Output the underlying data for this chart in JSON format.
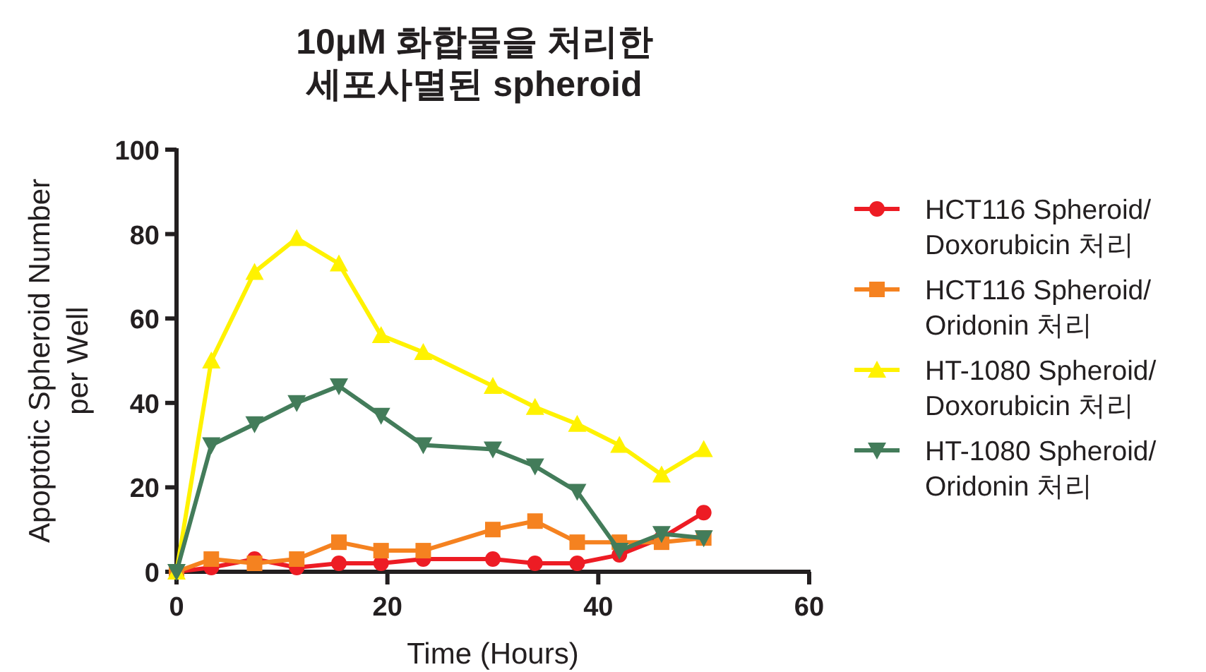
{
  "chart_data": {
    "type": "line",
    "title": "10μM 화합물을 처리한\n세포사멸된 spheroid",
    "xlabel": "Time (Hours)",
    "ylabel": "Apoptotic Spheroid Number\nper Well",
    "x": [
      0,
      3.3,
      7.4,
      11.4,
      15.4,
      19.4,
      23.4,
      30,
      34,
      38,
      42,
      46,
      50
    ],
    "xlim": [
      0,
      60
    ],
    "xticks": [
      0,
      20,
      40,
      60
    ],
    "ylim": [
      0,
      100
    ],
    "yticks": [
      0,
      20,
      40,
      60,
      80,
      100
    ],
    "grid": false,
    "legend": "right",
    "line_style": "solid",
    "series": [
      {
        "name": "HCT116 Spheroid/\nDoxorubicin 처리",
        "color": "#ed1c24",
        "marker": "circle",
        "values": [
          0,
          1,
          3,
          1,
          2,
          2,
          3,
          3,
          2,
          2,
          4,
          8,
          14
        ]
      },
      {
        "name": "HCT116 Spheroid/\nOridonin 처리",
        "color": "#f58220",
        "marker": "square",
        "values": [
          0,
          3,
          2,
          3,
          7,
          5,
          5,
          10,
          12,
          7,
          7,
          7,
          8
        ]
      },
      {
        "name": "HT-1080 Spheroid/\nDoxorubicin 처리",
        "color": "#fff200",
        "marker": "triangle",
        "values": [
          0,
          50,
          71,
          79,
          73,
          56,
          52,
          44,
          39,
          35,
          30,
          23,
          29
        ]
      },
      {
        "name": "HT-1080 Spheroid/\nOridonin 처리",
        "color": "#437c5a",
        "marker": "triangle-down",
        "values": [
          0,
          30,
          35,
          40,
          44,
          37,
          30,
          29,
          25,
          19,
          5,
          9,
          8
        ]
      }
    ]
  }
}
